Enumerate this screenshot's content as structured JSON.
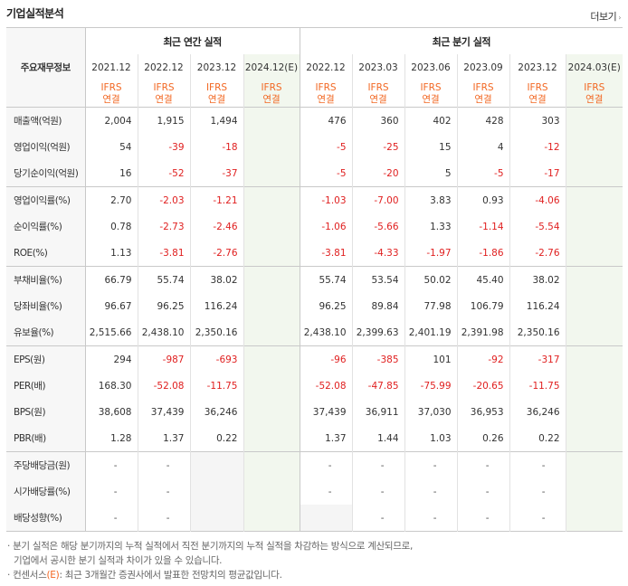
{
  "header": {
    "title": "기업실적분석",
    "more_label": "더보기",
    "more_icon": "chevron-right-icon"
  },
  "table": {
    "corner_label": "주요재무정보",
    "annual_label": "최근 연간 실적",
    "quarter_label": "최근 분기 실적",
    "annual_periods": [
      "2021.12",
      "2022.12",
      "2023.12",
      "2024.12(E)"
    ],
    "quarter_periods": [
      "2022.12",
      "2023.03",
      "2023.06",
      "2023.09",
      "2023.12",
      "2024.03(E)"
    ],
    "ifrs_top": "IFRS",
    "ifrs_bottom": "연결",
    "rows": [
      {
        "label": "매출액(억원)",
        "annual": [
          "2,004",
          "1,915",
          "1,494",
          ""
        ],
        "quarter": [
          "476",
          "360",
          "402",
          "428",
          "303",
          ""
        ]
      },
      {
        "label": "영업이익(억원)",
        "annual": [
          "54",
          "-39",
          "-18",
          ""
        ],
        "quarter": [
          "-5",
          "-25",
          "15",
          "4",
          "-12",
          ""
        ]
      },
      {
        "label": "당기순이익(억원)",
        "annual": [
          "16",
          "-52",
          "-37",
          ""
        ],
        "quarter": [
          "-5",
          "-20",
          "5",
          "-5",
          "-17",
          ""
        ]
      },
      {
        "label": "영업이익률(%)",
        "annual": [
          "2.70",
          "-2.03",
          "-1.21",
          ""
        ],
        "quarter": [
          "-1.03",
          "-7.00",
          "3.83",
          "0.93",
          "-4.06",
          ""
        ]
      },
      {
        "label": "순이익률(%)",
        "annual": [
          "0.78",
          "-2.73",
          "-2.46",
          ""
        ],
        "quarter": [
          "-1.06",
          "-5.66",
          "1.33",
          "-1.14",
          "-5.54",
          ""
        ]
      },
      {
        "label": "ROE(%)",
        "annual": [
          "1.13",
          "-3.81",
          "-2.76",
          ""
        ],
        "quarter": [
          "-3.81",
          "-4.33",
          "-1.97",
          "-1.86",
          "-2.76",
          ""
        ]
      },
      {
        "label": "부채비율(%)",
        "annual": [
          "66.79",
          "55.74",
          "38.02",
          ""
        ],
        "quarter": [
          "55.74",
          "53.54",
          "50.02",
          "45.40",
          "38.02",
          ""
        ]
      },
      {
        "label": "당좌비율(%)",
        "annual": [
          "96.67",
          "96.25",
          "116.24",
          ""
        ],
        "quarter": [
          "96.25",
          "89.84",
          "77.98",
          "106.79",
          "116.24",
          ""
        ]
      },
      {
        "label": "유보율(%)",
        "annual": [
          "2,515.66",
          "2,438.10",
          "2,350.16",
          ""
        ],
        "quarter": [
          "2,438.10",
          "2,399.63",
          "2,401.19",
          "2,391.98",
          "2,350.16",
          ""
        ]
      },
      {
        "label": "EPS(원)",
        "annual": [
          "294",
          "-987",
          "-693",
          ""
        ],
        "quarter": [
          "-96",
          "-385",
          "101",
          "-92",
          "-317",
          ""
        ]
      },
      {
        "label": "PER(배)",
        "annual": [
          "168.30",
          "-52.08",
          "-11.75",
          ""
        ],
        "quarter": [
          "-52.08",
          "-47.85",
          "-75.99",
          "-20.65",
          "-11.75",
          ""
        ]
      },
      {
        "label": "BPS(원)",
        "annual": [
          "38,608",
          "37,439",
          "36,246",
          ""
        ],
        "quarter": [
          "37,439",
          "36,911",
          "37,030",
          "36,953",
          "36,246",
          ""
        ]
      },
      {
        "label": "PBR(배)",
        "annual": [
          "1.28",
          "1.37",
          "0.22",
          ""
        ],
        "quarter": [
          "1.37",
          "1.44",
          "1.03",
          "0.26",
          "0.22",
          ""
        ]
      },
      {
        "label": "주당배당금(원)",
        "annual": [
          "-",
          "-",
          "",
          ""
        ],
        "quarter": [
          "-",
          "-",
          "-",
          "-",
          "-",
          ""
        ]
      },
      {
        "label": "시가배당률(%)",
        "annual": [
          "-",
          "-",
          "",
          ""
        ],
        "quarter": [
          "-",
          "-",
          "-",
          "-",
          "-",
          ""
        ]
      },
      {
        "label": "배당성향(%)",
        "annual": [
          "-",
          "-",
          "",
          ""
        ],
        "quarter": [
          "",
          "-",
          "-",
          "-",
          "-",
          ""
        ]
      }
    ]
  },
  "notes": {
    "line1": "· 분기 실적은 해당 분기까지의 누적 실적에서 직전 분기까지의 누적 실적을 차감하는 방식으로 계산되므로,",
    "line2": "기업에서 공시한 분기 실적과 차이가 있을 수 있습니다.",
    "line3_prefix": "· 컨센서스",
    "line3_e": "(E)",
    "line3_suffix": ": 최근 3개월간 증권사에서 발표한 전망치의 평균값입니다."
  }
}
